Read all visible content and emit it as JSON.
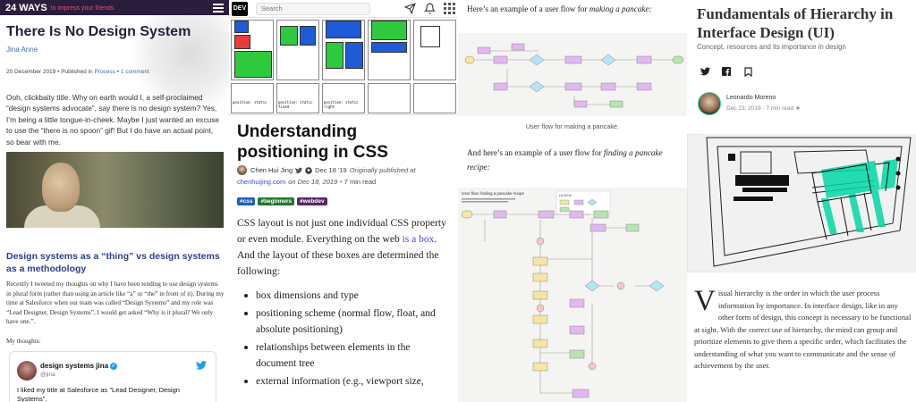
{
  "panel1": {
    "brand": "24 WAYS",
    "tagline": "to impress your friends",
    "title": "There Is No Design System",
    "author": "Jina Anne",
    "date": "20 December 2019",
    "published_in_prefix": "Published in",
    "category": "Process",
    "comments": "1 comment",
    "intro": "Ooh, clickbaity title. Why on earth would I, a self-proclaimed “design systems advocate”, say there is no design system? Yes, I’m being a little tongue-in-cheek. Maybe I just wanted an excuse to use the “there is no spoon” gif! But I do have an actual point, so bear with me.",
    "heading": "Design systems as a “thing” vs design systems as a methodology",
    "body": "Recently I tweeted my thoughts on why I have been tending to use design systems in plural form (rather than using an article like “a” or “the” in front of it). During my time at Salesforce when our team was called “Design Systems” and my role was “Lead Designer, Design Systems”, I would get asked “Why is it plural? We only have one.”.",
    "my_thoughts": "My thoughts:",
    "tweet": {
      "name": "design systems jina",
      "handle": "@jina",
      "text": "I liked my title at Salesforce as \"Lead Designer, Design Systems\"."
    }
  },
  "panel2": {
    "logo": "DEV",
    "search_placeholder": "Search",
    "grid_labels": [
      "position: static",
      "position: static fixed",
      "position: static right"
    ],
    "title": "Understanding positioning in CSS",
    "author": "Chen Hui Jing",
    "date": "Dec 18 '19",
    "originally": "Originally published at",
    "origin_link": "chenhuijing.com",
    "origin_date": "on Dec 18, 2019",
    "read_time": "・7 min read",
    "tags": [
      {
        "label": "#css",
        "color": "#1e5eb8"
      },
      {
        "label": "#beginners",
        "color": "#1f7a2b"
      },
      {
        "label": "#webdev",
        "color": "#562765"
      }
    ],
    "body_before_link": "CSS layout is not just one individual CSS property or even module. Everything on the web ",
    "body_link": "is a box",
    "body_after_link": ". And the layout of these boxes are determined the following:",
    "list": [
      "box dimensions and type",
      "positioning scheme (normal flow, float, and absolute positioning)",
      "relationships between elements in the document tree",
      "external information (e.g., viewport size,"
    ]
  },
  "panel3": {
    "intro1_plain": "Here’s an example of a user flow for ",
    "intro1_em": "making a pancake:",
    "caption": "User flow for making a pancake.",
    "intro2_plain": "And here’s an example of a user flow for ",
    "intro2_em": "finding a pancake recipe:",
    "flow2_title": "User flow: finding a pancake recipe",
    "flow2_legend": "LEGEND"
  },
  "panel4": {
    "title": "Fundamentals of Hierarchy in Interface Design (UI)",
    "subtitle": "Concept, resources and its importance in design",
    "author": "Leonardo Moreno",
    "date": "Dec 23, 2019 · 7 min read ★",
    "drop_cap": "V",
    "body": "isual hierarchy is the order in which the user process information by importance. In interface design, like in any other form of design, this concept is necessary to be functional at sight. With the correct use of hierarchy, the mind can group and prioritize elements to give them a specific order, which facilitates the understanding of what you want to communicate and the sense of achievement by the user."
  },
  "colors": {
    "brand_dark": "#2b1d3c",
    "link_blue": "#3a6fb0",
    "dev_link": "#3b49df",
    "accent_green": "#34d399",
    "flow_yellow": "#f5e6a3",
    "flow_purple": "#e2b8f0",
    "flow_green": "#b7e4b0",
    "flow_blue": "#b6e3f5"
  },
  "icons": [
    "hamburger-icon",
    "send-icon",
    "bell-icon",
    "menu-grid-icon",
    "twitter-icon",
    "facebook-icon",
    "bookmark-icon",
    "github-icon",
    "verified-icon"
  ]
}
